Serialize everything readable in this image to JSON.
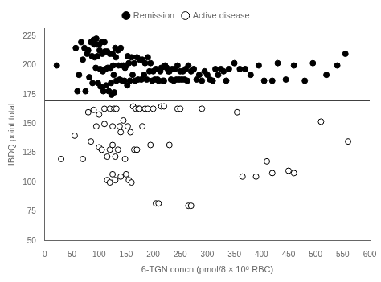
{
  "chart_data": {
    "type": "scatter",
    "xlabel": "6-TGN concn (pmol/8 × 10⁸ RBC)",
    "ylabel": "IBDQ point total",
    "xlim": [
      0,
      600
    ],
    "ylim": [
      50,
      232
    ],
    "xticks": [
      0,
      50,
      100,
      150,
      200,
      250,
      300,
      350,
      400,
      450,
      500,
      550,
      600
    ],
    "yticks": [
      50,
      75,
      100,
      125,
      150,
      175,
      200,
      225
    ],
    "hline_y": 170,
    "grid": false,
    "legend": "top",
    "series": [
      {
        "name": "Remission",
        "color": "#000000",
        "marker": "circle",
        "x": [
          22,
          57,
          60,
          63,
          67,
          70,
          73,
          75,
          78,
          80,
          82,
          85,
          87,
          88,
          90,
          91,
          92,
          94,
          95,
          96,
          97,
          98,
          100,
          101,
          102,
          103,
          105,
          106,
          107,
          108,
          110,
          111,
          112,
          113,
          115,
          116,
          118,
          120,
          121,
          122,
          123,
          125,
          126,
          127,
          128,
          130,
          131,
          132,
          135,
          136,
          138,
          140,
          141,
          143,
          145,
          147,
          148,
          150,
          152,
          153,
          155,
          157,
          160,
          162,
          165,
          167,
          170,
          172,
          175,
          178,
          180,
          183,
          185,
          188,
          190,
          193,
          195,
          198,
          200,
          203,
          205,
          208,
          210,
          213,
          215,
          218,
          220,
          222,
          225,
          228,
          230,
          233,
          235,
          238,
          240,
          243,
          245,
          248,
          250,
          253,
          255,
          258,
          260,
          263,
          265,
          270,
          275,
          280,
          285,
          290,
          295,
          300,
          305,
          310,
          315,
          320,
          325,
          330,
          335,
          340,
          350,
          360,
          370,
          380,
          395,
          405,
          420,
          430,
          445,
          460,
          480,
          495,
          520,
          540,
          555
        ],
        "values": [
          200,
          215,
          178,
          192,
          220,
          205,
          215,
          178,
          210,
          213,
          190,
          220,
          208,
          185,
          222,
          218,
          207,
          198,
          223,
          218,
          208,
          185,
          218,
          213,
          197,
          182,
          220,
          210,
          195,
          178,
          220,
          212,
          197,
          183,
          212,
          198,
          178,
          210,
          198,
          185,
          175,
          210,
          200,
          192,
          177,
          215,
          207,
          187,
          213,
          200,
          188,
          215,
          200,
          187,
          200,
          187,
          198,
          200,
          183,
          208,
          202,
          187,
          207,
          192,
          202,
          187,
          207,
          188,
          205,
          188,
          205,
          192,
          202,
          188,
          207,
          195,
          202,
          187,
          195,
          188,
          197,
          188,
          187,
          195,
          198,
          187,
          187,
          200,
          198,
          195,
          195,
          188,
          197,
          187,
          197,
          188,
          200,
          188,
          195,
          188,
          195,
          188,
          197,
          187,
          200,
          195,
          197,
          188,
          192,
          187,
          195,
          192,
          188,
          187,
          197,
          192,
          197,
          195,
          187,
          197,
          202,
          197,
          197,
          192,
          200,
          187,
          187,
          202,
          188,
          200,
          187,
          202,
          192,
          200,
          210
        ]
      },
      {
        "name": "Active disease",
        "color": "#ffffff",
        "marker": "circle",
        "x": [
          30,
          55,
          70,
          80,
          85,
          90,
          95,
          100,
          100,
          105,
          110,
          110,
          115,
          115,
          120,
          120,
          120,
          125,
          125,
          125,
          128,
          130,
          130,
          132,
          135,
          138,
          140,
          140,
          145,
          148,
          150,
          153,
          155,
          158,
          160,
          163,
          165,
          168,
          170,
          173,
          175,
          180,
          185,
          190,
          195,
          200,
          205,
          210,
          215,
          220,
          230,
          245,
          250,
          265,
          270,
          290,
          355,
          365,
          390,
          410,
          420,
          450,
          460,
          510,
          560
        ],
        "values": [
          120,
          140,
          120,
          160,
          135,
          162,
          148,
          130,
          158,
          128,
          150,
          163,
          102,
          122,
          100,
          128,
          163,
          107,
          132,
          148,
          163,
          102,
          122,
          163,
          128,
          148,
          105,
          143,
          153,
          120,
          107,
          148,
          102,
          143,
          100,
          165,
          128,
          163,
          128,
          163,
          163,
          148,
          163,
          163,
          132,
          163,
          82,
          82,
          165,
          165,
          132,
          163,
          163,
          80,
          80,
          163,
          160,
          105,
          105,
          118,
          108,
          110,
          108,
          152,
          135
        ]
      }
    ]
  }
}
